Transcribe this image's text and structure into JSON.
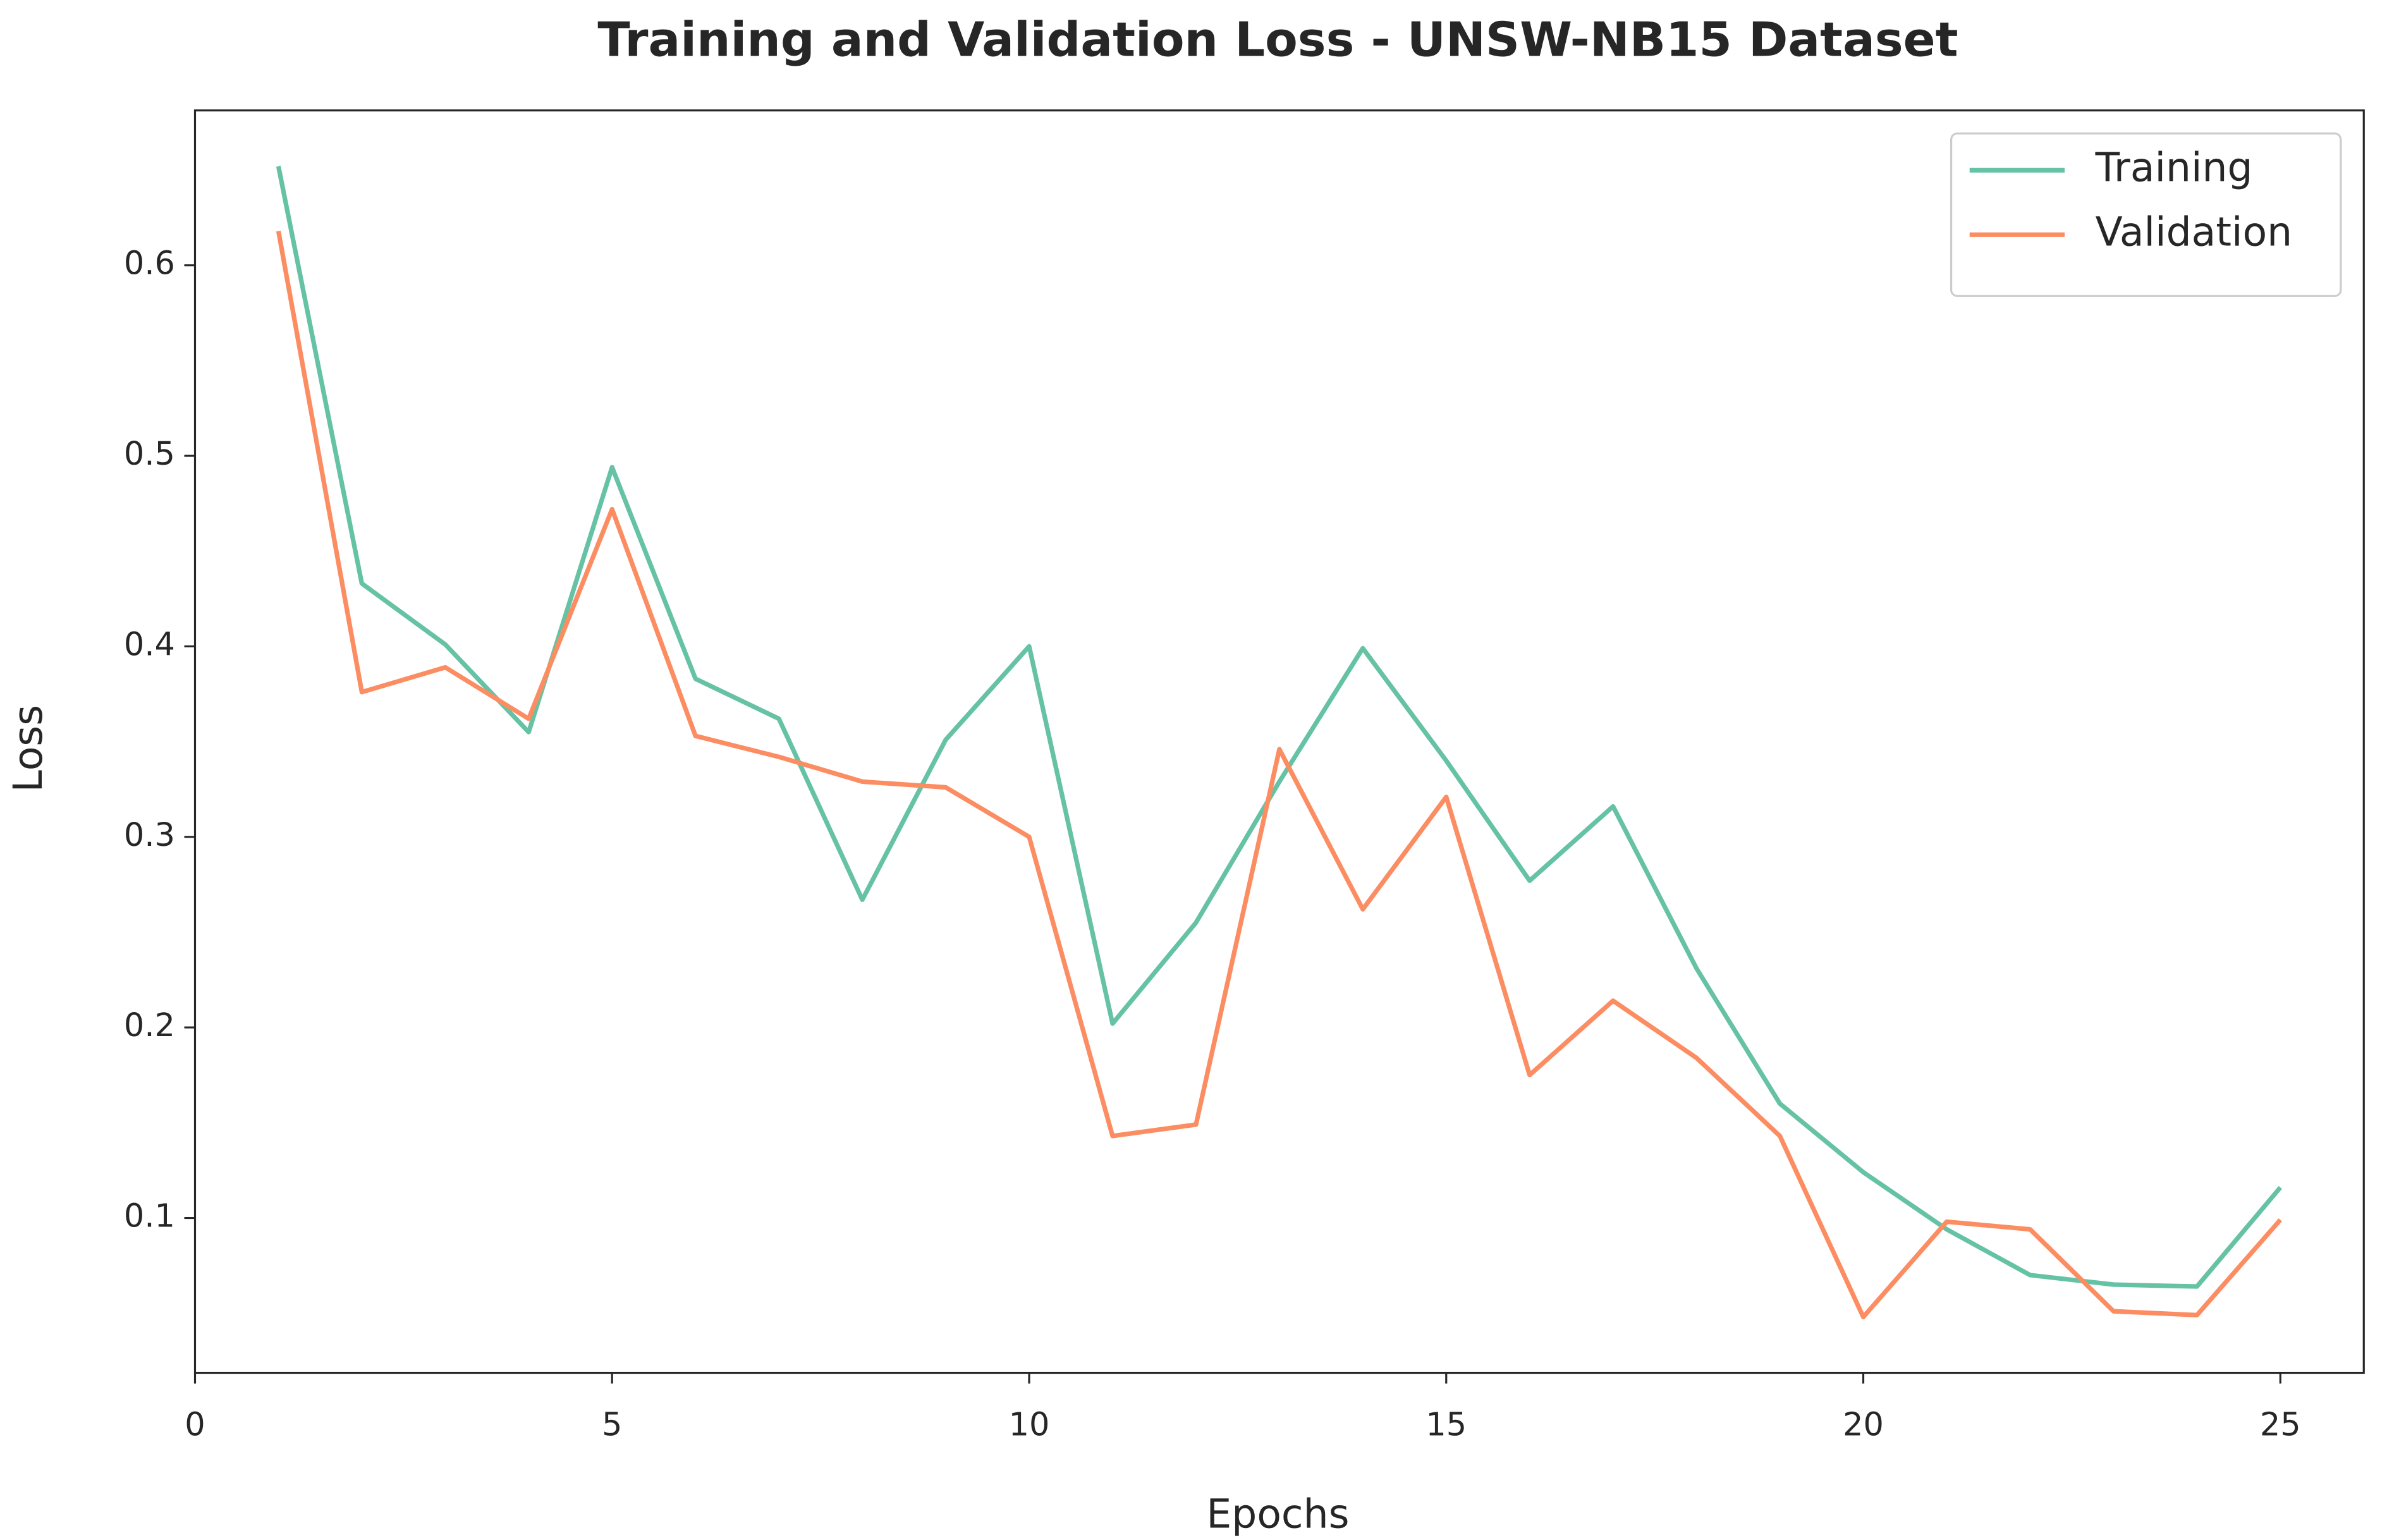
{
  "chart_data": {
    "type": "line",
    "title": "Training and Validation Loss - UNSW-NB15 Dataset",
    "xlabel": "Epochs",
    "ylabel": "Loss",
    "x": [
      1,
      2,
      3,
      4,
      5,
      6,
      7,
      8,
      9,
      10,
      11,
      12,
      13,
      14,
      15,
      16,
      17,
      18,
      19,
      20,
      21,
      22,
      23,
      24,
      25
    ],
    "series": [
      {
        "name": "Training",
        "color": "#66c2a5",
        "values": [
          0.652,
          0.433,
          0.401,
          0.355,
          0.494,
          0.383,
          0.362,
          0.267,
          0.351,
          0.4,
          0.202,
          0.255,
          0.329,
          0.399,
          0.34,
          0.277,
          0.316,
          0.231,
          0.16,
          0.124,
          0.094,
          0.07,
          0.065,
          0.064,
          0.116
        ]
      },
      {
        "name": "Validation",
        "color": "#fc8d62",
        "values": [
          0.618,
          0.376,
          0.389,
          0.362,
          0.472,
          0.353,
          0.342,
          0.329,
          0.326,
          0.3,
          0.143,
          0.149,
          0.346,
          0.262,
          0.321,
          0.175,
          0.214,
          0.184,
          0.143,
          0.048,
          0.098,
          0.094,
          0.051,
          0.049,
          0.099
        ]
      }
    ],
    "xlim": [
      0,
      26
    ],
    "xticks": [
      0,
      5,
      10,
      15,
      20,
      25
    ],
    "ylim": [
      0.0187,
      0.6813
    ],
    "yticks": [
      0.1,
      0.2,
      0.3,
      0.4,
      0.5,
      0.6
    ],
    "grid": false,
    "legend": "upper right"
  }
}
